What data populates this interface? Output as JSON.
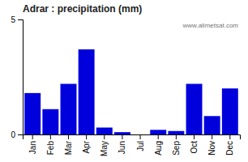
{
  "chart_data": {
    "type": "bar",
    "title": "Adrar : precipitation (mm)",
    "categories": [
      "Jan",
      "Feb",
      "Mar",
      "Apr",
      "May",
      "Jun",
      "Jul",
      "Aug",
      "Sep",
      "Oct",
      "Nov",
      "Dec"
    ],
    "values": [
      1.8,
      1.1,
      2.2,
      3.7,
      0.3,
      0.1,
      0.0,
      0.2,
      0.15,
      2.2,
      0.8,
      2.0
    ],
    "color": "#0000dd",
    "ylim": [
      0,
      5
    ],
    "yticks": [
      0,
      5
    ],
    "grid": false,
    "annotation": "www.allmetsat.com"
  }
}
